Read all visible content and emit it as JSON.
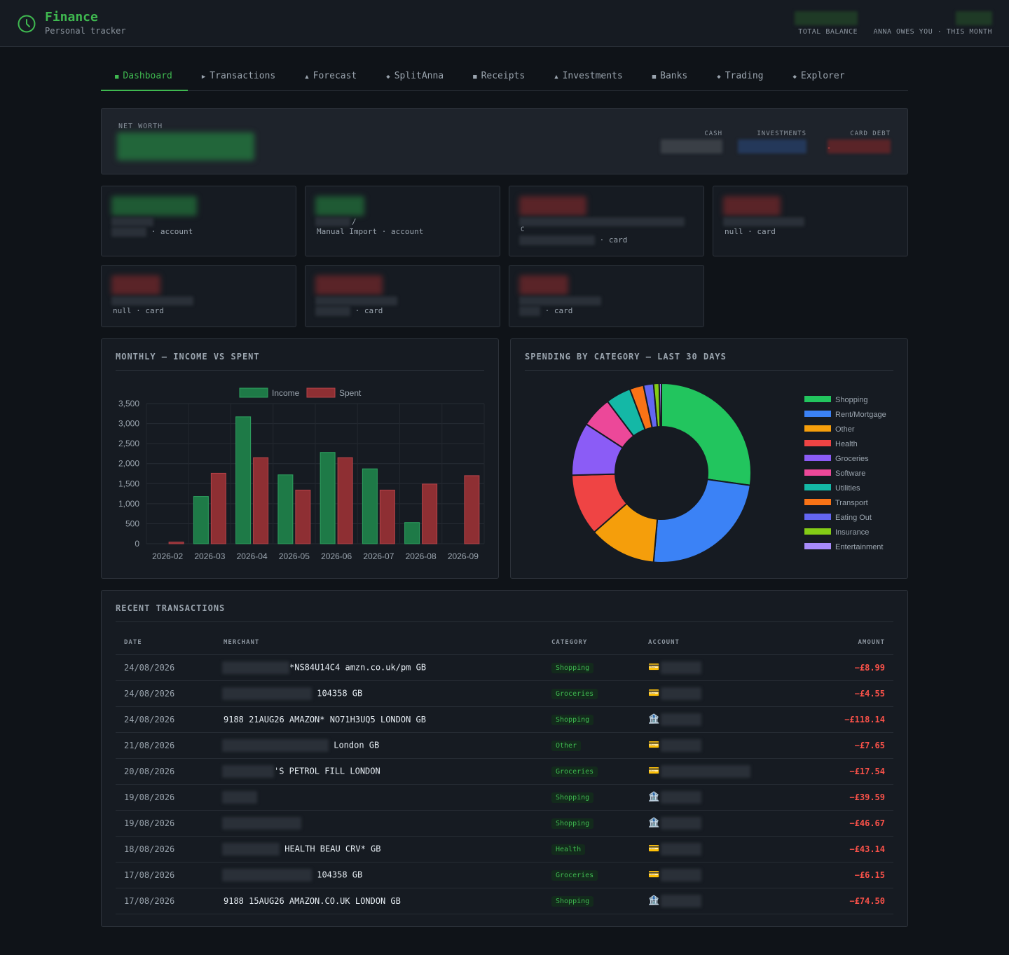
{
  "app": {
    "title": "Finance",
    "subtitle": "Personal tracker"
  },
  "header_stats": [
    {
      "label": "TOTAL BALANCE"
    },
    {
      "label": "ANNA OWES YOU · THIS MONTH"
    }
  ],
  "tabs": [
    {
      "glyph": "■",
      "label": "Dashboard",
      "active": true
    },
    {
      "glyph": "▶",
      "label": "Transactions"
    },
    {
      "glyph": "▲",
      "label": "Forecast"
    },
    {
      "glyph": "◆",
      "label": "SplitAnna"
    },
    {
      "glyph": "■",
      "label": "Receipts"
    },
    {
      "glyph": "▲",
      "label": "Investments"
    },
    {
      "glyph": "■",
      "label": "Banks"
    },
    {
      "glyph": "◆",
      "label": "Trading"
    },
    {
      "glyph": "◆",
      "label": "Explorer"
    }
  ],
  "net_worth": {
    "label": "NET WORTH",
    "cash_label": "CASH",
    "investments_label": "INVESTMENTS",
    "card_debt_label": "CARD DEBT",
    "card_debt_sign": "-"
  },
  "accounts": [
    {
      "prefix": "",
      "suffix": "· account",
      "extra": ""
    },
    {
      "prefix": "Manual Import",
      "suffix": "· account",
      "extra": "/"
    },
    {
      "prefix": "",
      "suffix": "· card",
      "extra": "C"
    },
    {
      "prefix": "null",
      "suffix": "· card",
      "extra": ""
    },
    {
      "prefix": "null",
      "suffix": "· card",
      "extra": ""
    },
    {
      "prefix": "",
      "suffix": "· card",
      "extra": ""
    },
    {
      "prefix": "",
      "suffix": "· card",
      "extra": ""
    }
  ],
  "monthly_chart": {
    "title": "MONTHLY — INCOME VS SPENT"
  },
  "category_chart": {
    "title": "SPENDING BY CATEGORY — LAST 30 DAYS"
  },
  "chart_data": [
    {
      "type": "bar",
      "title": "MONTHLY — INCOME VS SPENT",
      "categories": [
        "2026-02",
        "2026-03",
        "2026-04",
        "2026-05",
        "2026-06",
        "2026-07",
        "2026-08",
        "2026-09"
      ],
      "series": [
        {
          "name": "Income",
          "values": [
            0,
            1180,
            3170,
            1720,
            2280,
            1870,
            530,
            0
          ],
          "color": "#1e7a47"
        },
        {
          "name": "Spent",
          "values": [
            40,
            1760,
            2150,
            1340,
            2150,
            1340,
            1490,
            1700
          ],
          "color": "#8e2f33"
        }
      ],
      "yticks": [
        "0",
        "500",
        "1,000",
        "1,500",
        "2,000",
        "2,500",
        "3,000",
        "3,500"
      ],
      "ylim": [
        0,
        3500
      ],
      "grid": true,
      "legend": "top"
    },
    {
      "type": "pie",
      "title": "SPENDING BY CATEGORY — LAST 30 DAYS",
      "labels": [
        "Shopping",
        "Rent/Mortgage",
        "Other",
        "Health",
        "Groceries",
        "Software",
        "Utilities",
        "Transport",
        "Eating Out",
        "Insurance",
        "Entertainment"
      ],
      "values": [
        27.0,
        24.0,
        12.0,
        11.0,
        9.5,
        5.5,
        4.5,
        2.5,
        1.8,
        1.0,
        0.4
      ],
      "colors": [
        "#22c55e",
        "#3b82f6",
        "#f59e0b",
        "#ef4444",
        "#8b5cf6",
        "#ec4899",
        "#14b8a6",
        "#f97316",
        "#6366f1",
        "#84cc16",
        "#a78bfa"
      ],
      "legend": "right"
    }
  ],
  "transactions": {
    "title": "RECENT TRANSACTIONS",
    "columns": [
      "DATE",
      "MERCHANT",
      "CATEGORY",
      "ACCOUNT",
      "AMOUNT"
    ],
    "rows": [
      {
        "date": "24/08/2026",
        "merchant": "*NS84U14C4 amzn.co.uk/pm GB",
        "category": "Shopping",
        "account_icon": "💳",
        "amount": "−£8.99"
      },
      {
        "date": "24/08/2026",
        "merchant": "104358 GB",
        "category": "Groceries",
        "account_icon": "💳",
        "amount": "−£4.55"
      },
      {
        "date": "24/08/2026",
        "merchant": "9188 21AUG26 AMAZON* NO71H3UQ5 LONDON GB",
        "category": "Shopping",
        "account_icon": "🏦",
        "amount": "−£118.14"
      },
      {
        "date": "21/08/2026",
        "merchant": "London GB",
        "category": "Other",
        "account_icon": "💳",
        "amount": "−£7.65"
      },
      {
        "date": "20/08/2026",
        "merchant": "'S PETROL FILL LONDON",
        "category": "Groceries",
        "account_icon": "💳",
        "amount": "−£17.54"
      },
      {
        "date": "19/08/2026",
        "merchant": "",
        "category": "Shopping",
        "account_icon": "🏦",
        "amount": "−£39.59"
      },
      {
        "date": "19/08/2026",
        "merchant": "",
        "category": "Shopping",
        "account_icon": "🏦",
        "amount": "−£46.67"
      },
      {
        "date": "18/08/2026",
        "merchant": "HEALTH BEAU CRV* GB",
        "category": "Health",
        "account_icon": "💳",
        "amount": "−£43.14"
      },
      {
        "date": "17/08/2026",
        "merchant": "104358 GB",
        "category": "Groceries",
        "account_icon": "💳",
        "amount": "−£6.15"
      },
      {
        "date": "17/08/2026",
        "merchant": "9188 15AUG26 AMAZON.CO.UK LONDON GB",
        "category": "Shopping",
        "account_icon": "🏦",
        "amount": "−£74.50"
      }
    ]
  }
}
